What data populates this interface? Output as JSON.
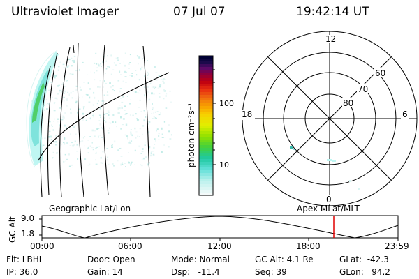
{
  "header": {
    "instrument": "Ultraviolet Imager",
    "date": "07 Jul 07",
    "time": "19:42:14 UT"
  },
  "colorbar": {
    "unit_label": "photon cm⁻²s⁻¹",
    "ticks": [
      "100",
      "10"
    ]
  },
  "polar_plot": {
    "mlt_labels": {
      "top": "12",
      "left": "18",
      "right": "6",
      "bottom": "0"
    },
    "lat_labels": [
      "60",
      "70",
      "80"
    ]
  },
  "timeline": {
    "ylabel": "GC Alt",
    "ytick_high": "9.0",
    "ytick_low": "1.8",
    "left_title": "Geographic Lat/Lon",
    "right_title": "Apex MLat/MLT",
    "time_ticks": [
      "00:00",
      "06:00",
      "12:00",
      "18:00",
      "23:59"
    ],
    "current_time_fraction": 0.8196
  },
  "status": {
    "flt": "Flt: LBHL",
    "ip": "IP: 36.0",
    "door": "Door: Open",
    "gain": "Gain: 14",
    "mode": "Mode: Normal",
    "dsp": "Dsp:   -11.4",
    "gcalt": "GC Alt: 4.1 Re",
    "seq": "Seq: 39",
    "glat": "GLat:  -42.3",
    "glon": "GLon:   94.2"
  },
  "colors": {
    "auroral_cyan": "#9ff0ec",
    "auroral_green": "#39d25a",
    "marker_red": "#e00000"
  }
}
